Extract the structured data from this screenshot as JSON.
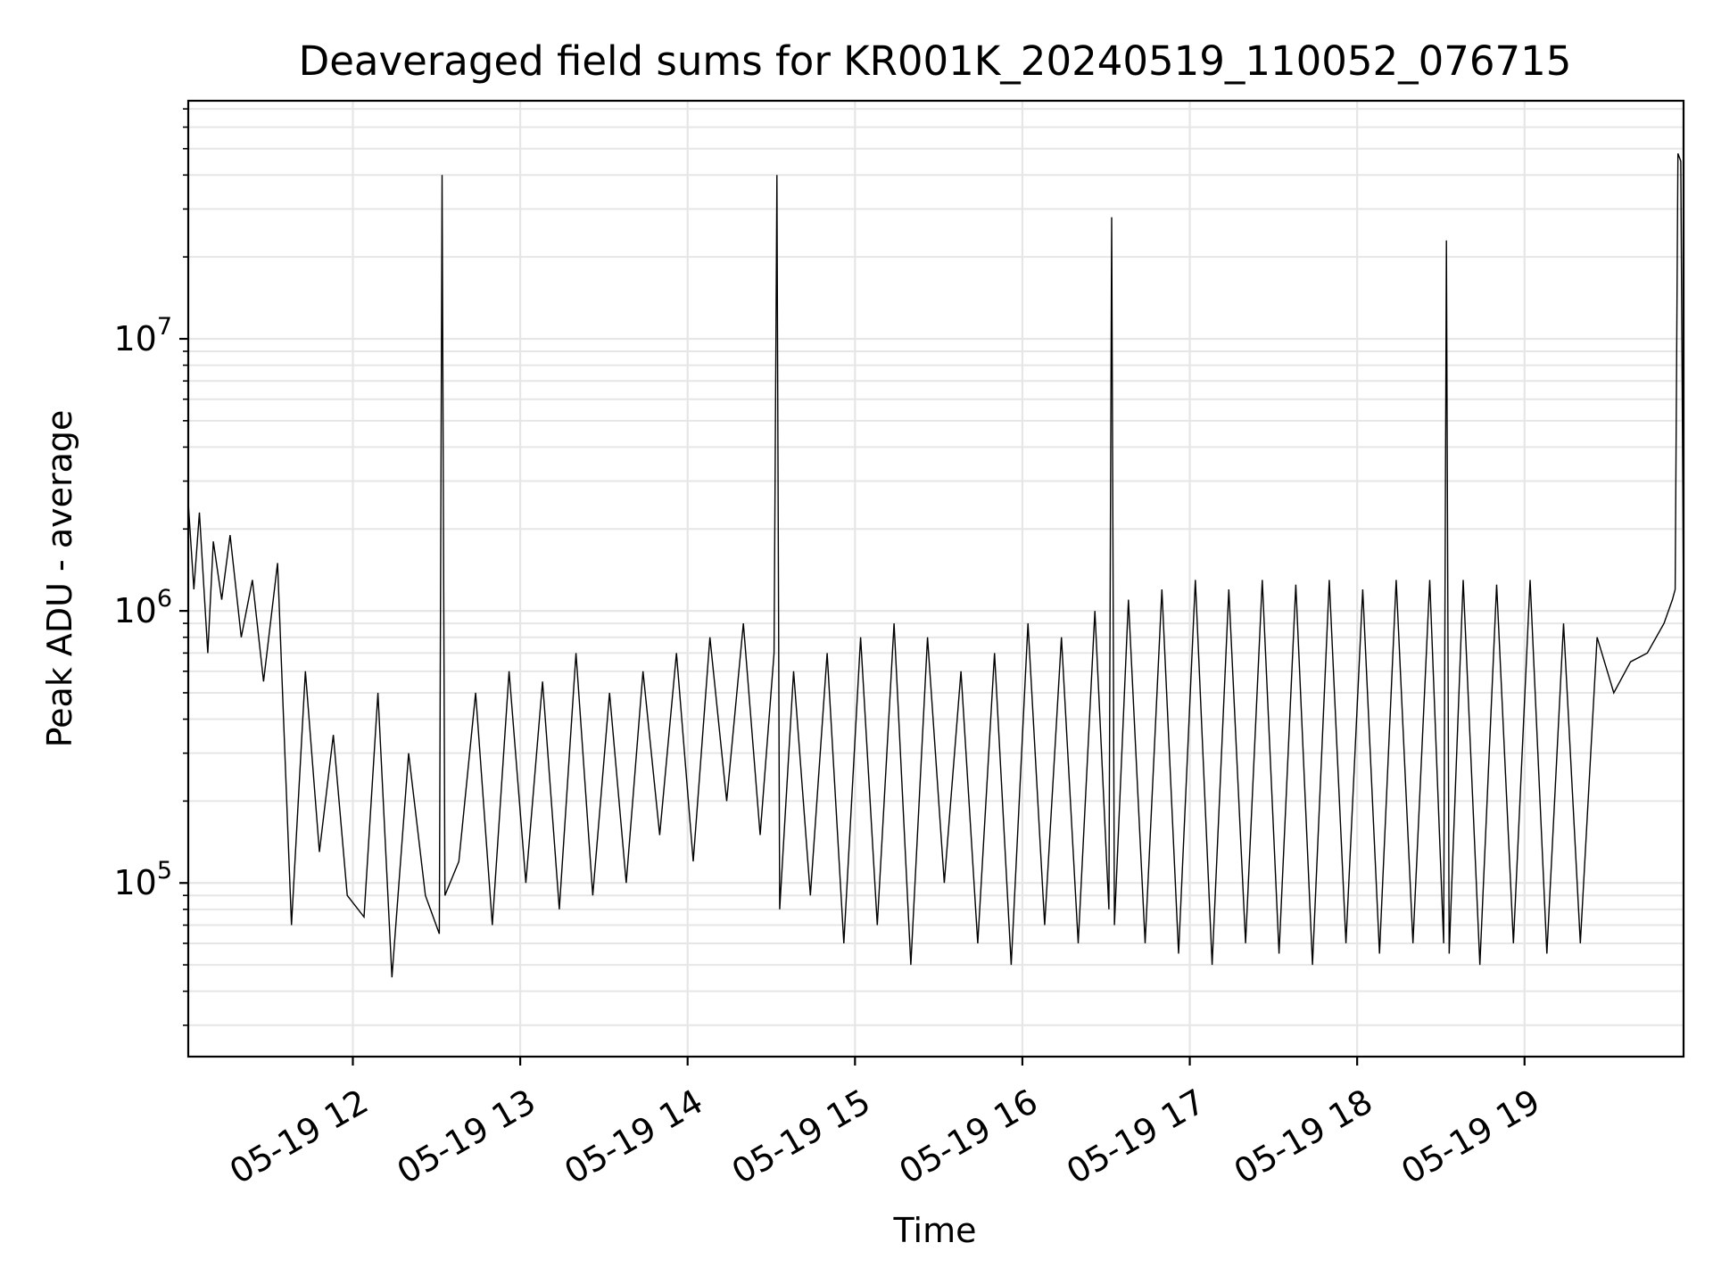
{
  "colors": {
    "background": "#ffffff",
    "line": "#000000",
    "grid": "#e6e6e6",
    "axes": "#000000"
  },
  "chart_data": {
    "type": "line",
    "title": "Deaveraged field sums for KR001K_20240519_110052_076715",
    "xlabel": "Time",
    "ylabel": "Peak ADU - average",
    "yscale": "log",
    "grid": true,
    "grid_minor": true,
    "xlim": [
      "2024-05-19 11:01",
      "2024-05-19 19:57"
    ],
    "ylim": [
      23000,
      75000000
    ],
    "x_tick_labels": [
      {
        "at": "2024-05-19 12:00",
        "label": "05-19 12"
      },
      {
        "at": "2024-05-19 13:00",
        "label": "05-19 13"
      },
      {
        "at": "2024-05-19 14:00",
        "label": "05-19 14"
      },
      {
        "at": "2024-05-19 15:00",
        "label": "05-19 15"
      },
      {
        "at": "2024-05-19 16:00",
        "label": "05-19 16"
      },
      {
        "at": "2024-05-19 17:00",
        "label": "05-19 17"
      },
      {
        "at": "2024-05-19 18:00",
        "label": "05-19 18"
      },
      {
        "at": "2024-05-19 19:00",
        "label": "05-19 19"
      }
    ],
    "y_tick_labels": [
      {
        "value": 100000,
        "mantissa": "10",
        "exponent": "5"
      },
      {
        "value": 1000000,
        "mantissa": "10",
        "exponent": "6"
      },
      {
        "value": 10000000,
        "mantissa": "10",
        "exponent": "7"
      }
    ],
    "series": [
      {
        "x": [
          "2024-05-19 11:01",
          "2024-05-19 11:03",
          "2024-05-19 11:05",
          "2024-05-19 11:08",
          "2024-05-19 11:10",
          "2024-05-19 11:13",
          "2024-05-19 11:16",
          "2024-05-19 11:20",
          "2024-05-19 11:24",
          "2024-05-19 11:28",
          "2024-05-19 11:33",
          "2024-05-19 11:38",
          "2024-05-19 11:43",
          "2024-05-19 11:48",
          "2024-05-19 11:53",
          "2024-05-19 11:58",
          "2024-05-19 12:04",
          "2024-05-19 12:09",
          "2024-05-19 12:14",
          "2024-05-19 12:20",
          "2024-05-19 12:26",
          "2024-05-19 12:31",
          "2024-05-19 12:32",
          "2024-05-19 12:33",
          "2024-05-19 12:38",
          "2024-05-19 12:44",
          "2024-05-19 12:50",
          "2024-05-19 12:56",
          "2024-05-19 13:02",
          "2024-05-19 13:08",
          "2024-05-19 13:14",
          "2024-05-19 13:20",
          "2024-05-19 13:26",
          "2024-05-19 13:32",
          "2024-05-19 13:38",
          "2024-05-19 13:44",
          "2024-05-19 13:50",
          "2024-05-19 13:56",
          "2024-05-19 14:02",
          "2024-05-19 14:08",
          "2024-05-19 14:14",
          "2024-05-19 14:20",
          "2024-05-19 14:26",
          "2024-05-19 14:31",
          "2024-05-19 14:32",
          "2024-05-19 14:33",
          "2024-05-19 14:38",
          "2024-05-19 14:44",
          "2024-05-19 14:50",
          "2024-05-19 14:56",
          "2024-05-19 15:02",
          "2024-05-19 15:08",
          "2024-05-19 15:14",
          "2024-05-19 15:20",
          "2024-05-19 15:26",
          "2024-05-19 15:32",
          "2024-05-19 15:38",
          "2024-05-19 15:44",
          "2024-05-19 15:50",
          "2024-05-19 15:56",
          "2024-05-19 16:02",
          "2024-05-19 16:08",
          "2024-05-19 16:14",
          "2024-05-19 16:20",
          "2024-05-19 16:26",
          "2024-05-19 16:31",
          "2024-05-19 16:32",
          "2024-05-19 16:33",
          "2024-05-19 16:38",
          "2024-05-19 16:44",
          "2024-05-19 16:50",
          "2024-05-19 16:56",
          "2024-05-19 17:02",
          "2024-05-19 17:08",
          "2024-05-19 17:14",
          "2024-05-19 17:20",
          "2024-05-19 17:26",
          "2024-05-19 17:32",
          "2024-05-19 17:38",
          "2024-05-19 17:44",
          "2024-05-19 17:50",
          "2024-05-19 17:56",
          "2024-05-19 18:02",
          "2024-05-19 18:08",
          "2024-05-19 18:14",
          "2024-05-19 18:20",
          "2024-05-19 18:26",
          "2024-05-19 18:31",
          "2024-05-19 18:32",
          "2024-05-19 18:33",
          "2024-05-19 18:38",
          "2024-05-19 18:44",
          "2024-05-19 18:50",
          "2024-05-19 18:56",
          "2024-05-19 19:02",
          "2024-05-19 19:08",
          "2024-05-19 19:14",
          "2024-05-19 19:20",
          "2024-05-19 19:26",
          "2024-05-19 19:32",
          "2024-05-19 19:38",
          "2024-05-19 19:44",
          "2024-05-19 19:50",
          "2024-05-19 19:53",
          "2024-05-19 19:54",
          "2024-05-19 19:55",
          "2024-05-19 19:56",
          "2024-05-19 19:57"
        ],
        "y": [
          2500000,
          1200000,
          2300000,
          700000,
          1800000,
          1100000,
          1900000,
          800000,
          1300000,
          550000,
          1500000,
          70000,
          600000,
          130000,
          350000,
          90000,
          75000,
          500000,
          45000,
          300000,
          90000,
          65000,
          40000000,
          90000,
          120000,
          500000,
          70000,
          600000,
          100000,
          550000,
          80000,
          700000,
          90000,
          500000,
          100000,
          600000,
          150000,
          700000,
          120000,
          800000,
          200000,
          900000,
          150000,
          700000,
          40000000,
          80000,
          600000,
          90000,
          700000,
          60000,
          800000,
          70000,
          900000,
          50000,
          800000,
          100000,
          600000,
          60000,
          700000,
          50000,
          900000,
          70000,
          800000,
          60000,
          1000000,
          80000,
          28000000,
          70000,
          1100000,
          60000,
          1200000,
          55000,
          1300000,
          50000,
          1200000,
          60000,
          1300000,
          55000,
          1250000,
          50000,
          1300000,
          60000,
          1200000,
          55000,
          1300000,
          60000,
          1300000,
          60000,
          23000000,
          55000,
          1300000,
          50000,
          1250000,
          60000,
          1300000,
          55000,
          900000,
          60000,
          800000,
          500000,
          650000,
          700000,
          900000,
          1100000,
          1200000,
          48000000,
          45000000,
          1000000
        ]
      }
    ]
  }
}
